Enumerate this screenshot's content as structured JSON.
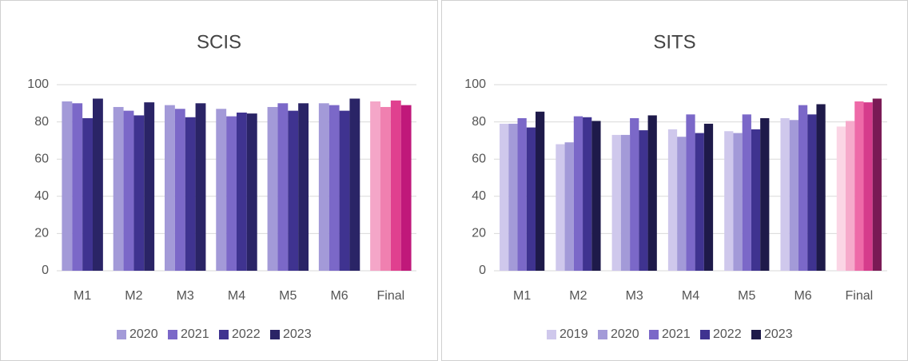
{
  "chart_data": [
    {
      "type": "bar",
      "title": "SCIS",
      "categories": [
        "M1",
        "M2",
        "M3",
        "M4",
        "M5",
        "M6",
        "Final"
      ],
      "ylim": [
        0,
        100
      ],
      "yticks": [
        0,
        20,
        40,
        60,
        80,
        100
      ],
      "grid": true,
      "legend": "bottom",
      "series": [
        {
          "name": "2020",
          "color": "#a39ad8",
          "colors": [
            "#a39ad8",
            "#a39ad8",
            "#a39ad8",
            "#a39ad8",
            "#a39ad8",
            "#a39ad8",
            "#f4a6c8"
          ],
          "values": [
            91,
            88,
            89,
            87,
            88,
            90,
            91
          ]
        },
        {
          "name": "2021",
          "color": "#7b68c8",
          "colors": [
            "#7b68c8",
            "#7b68c8",
            "#7b68c8",
            "#7b68c8",
            "#7b68c8",
            "#7b68c8",
            "#f080b0"
          ],
          "values": [
            90,
            86,
            87,
            83,
            90,
            89,
            88
          ]
        },
        {
          "name": "2022",
          "color": "#3f3390",
          "colors": [
            "#3f3390",
            "#3f3390",
            "#3f3390",
            "#3f3390",
            "#3f3390",
            "#3f3390",
            "#e0408f"
          ],
          "values": [
            82,
            83.5,
            82.5,
            85,
            86,
            86,
            91.5
          ]
        },
        {
          "name": "2023",
          "color": "#2a2466",
          "colors": [
            "#2a2466",
            "#2a2466",
            "#2a2466",
            "#2a2466",
            "#2a2466",
            "#2a2466",
            "#c0187a"
          ],
          "values": [
            92.5,
            90.5,
            90,
            84.5,
            90,
            92.5,
            89
          ]
        }
      ]
    },
    {
      "type": "bar",
      "title": "SITS",
      "categories": [
        "M1",
        "M2",
        "M3",
        "M4",
        "M5",
        "M6",
        "Final"
      ],
      "ylim": [
        0,
        100
      ],
      "yticks": [
        0,
        20,
        40,
        60,
        80,
        100
      ],
      "grid": true,
      "legend": "bottom",
      "series": [
        {
          "name": "2019",
          "color": "#cfc8ec",
          "colors": [
            "#cfc8ec",
            "#cfc8ec",
            "#cfc8ec",
            "#cfc8ec",
            "#cfc8ec",
            "#cfc8ec",
            "#fbd5e5"
          ],
          "values": [
            79,
            68,
            73,
            76,
            75,
            82,
            77.5
          ]
        },
        {
          "name": "2020",
          "color": "#a39ad8",
          "colors": [
            "#a39ad8",
            "#a39ad8",
            "#a39ad8",
            "#a39ad8",
            "#a39ad8",
            "#a39ad8",
            "#f6aacb"
          ],
          "values": [
            79,
            69,
            73,
            72,
            74,
            81,
            80.5
          ]
        },
        {
          "name": "2021",
          "color": "#7b68c8",
          "colors": [
            "#7b68c8",
            "#7b68c8",
            "#7b68c8",
            "#7b68c8",
            "#7b68c8",
            "#7b68c8",
            "#ee6aa8"
          ],
          "values": [
            82,
            83,
            82,
            84,
            84,
            89,
            91
          ]
        },
        {
          "name": "2022",
          "color": "#3f3390",
          "colors": [
            "#3f3390",
            "#3f3390",
            "#3f3390",
            "#3f3390",
            "#3f3390",
            "#3f3390",
            "#d63c8c"
          ],
          "values": [
            77,
            82.5,
            75.5,
            74,
            76,
            84,
            90.5
          ]
        },
        {
          "name": "2023",
          "color": "#1e1a4a",
          "colors": [
            "#1e1a4a",
            "#1e1a4a",
            "#1e1a4a",
            "#1e1a4a",
            "#1e1a4a",
            "#1e1a4a",
            "#7a1a55"
          ],
          "values": [
            85.5,
            80.5,
            83.5,
            79,
            82,
            89.5,
            92.5
          ]
        }
      ]
    }
  ]
}
